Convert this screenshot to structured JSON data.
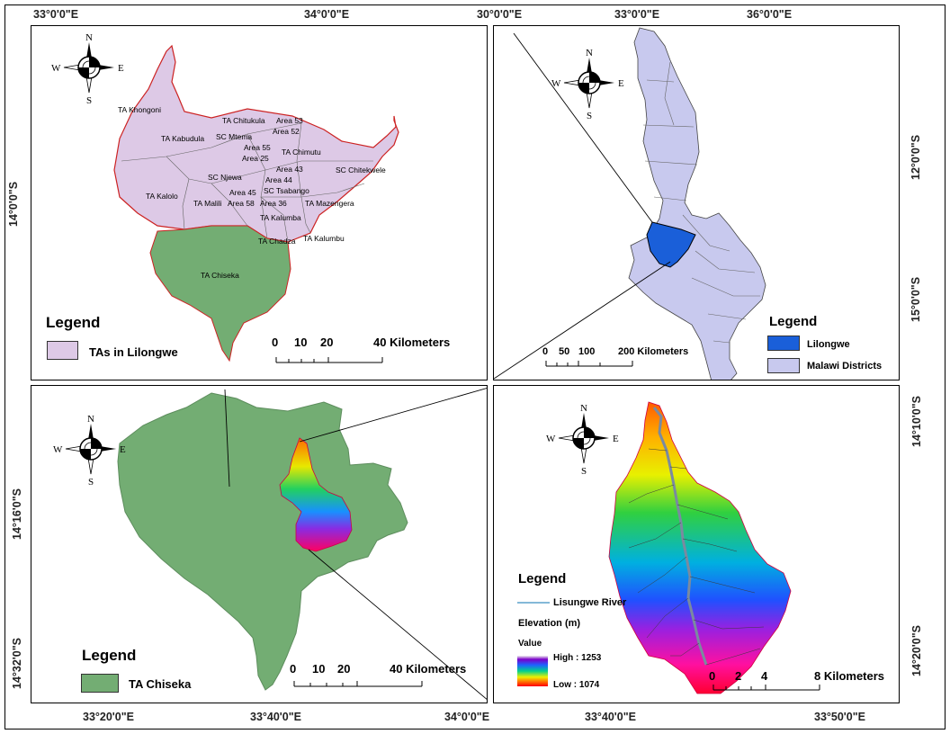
{
  "graticules": {
    "p1_top": [
      "33°0'0\"E",
      "34°0'0\"E"
    ],
    "p1_left": [
      "14°0'0\"S"
    ],
    "p2_top": [
      "30°0'0\"E",
      "33°0'0\"E",
      "36°0'0\"E"
    ],
    "p2_right": [
      "12°0'0\"S",
      "15°0'0\"S"
    ],
    "p3_left": [
      "14°16'0\"S",
      "14°32'0\"S"
    ],
    "p3_bottom": [
      "33°20'0\"E",
      "33°40'0\"E",
      "34°0'0\"E"
    ],
    "p4_right": [
      "14°10'0\"S",
      "14°20'0\"S"
    ],
    "p4_bottom": [
      "33°40'0\"E",
      "33°50'0\"E"
    ]
  },
  "compass": {
    "n": "N",
    "s": "S",
    "e": "E",
    "w": "W"
  },
  "panel1": {
    "legend_title": "Legend",
    "legend_item": "TAs in Lilongwe",
    "scale_ticks": [
      "0",
      "10",
      "20",
      "40 Kilometers"
    ],
    "labels": [
      "TA Khongoni",
      "TA Chitukula",
      "Area 53",
      "Area 52",
      "TA Kabudula",
      "SC Mtema",
      "Area 55",
      "TA Chimutu",
      "Area 25",
      "Area 43",
      "SC Chitekwele",
      "SC Njewa",
      "Area 44",
      "Area 45",
      "SC Tsabango",
      "TA Kalolo",
      "TA Malili",
      "Area 58",
      "Area 36",
      "TA Mazengera",
      "TA Kalumba",
      "TA Chadza",
      "TA Kalumbu",
      "TA Chiseka"
    ],
    "colors": {
      "ta_fill": "#ddc9e6",
      "ta_border": "#cc2222",
      "chiseka_fill": "#73ad73"
    }
  },
  "panel2": {
    "legend_title": "Legend",
    "legend_items": [
      "Lilongwe",
      "Malawi Districts"
    ],
    "scale_ticks": [
      "0",
      "50",
      "100",
      "200 Kilometers"
    ],
    "colors": {
      "lilongwe": "#1a5fd9",
      "districts": "#c8c9ee"
    }
  },
  "panel3": {
    "legend_title": "Legend",
    "legend_item": "TA Chiseka",
    "scale_ticks": [
      "0",
      "10",
      "20",
      "40 Kilometers"
    ],
    "colors": {
      "chiseka": "#73ad73"
    }
  },
  "panel4": {
    "legend_title": "Legend",
    "river_label": "Lisungwe River",
    "elevation_label": "Elevation (m)",
    "value_label": "Value",
    "high_label": "High : 1253",
    "low_label": "Low : 1074",
    "scale_ticks": [
      "0",
      "2",
      "4",
      "8 Kilometers"
    ],
    "colors": {
      "river": "#3a8fc0"
    }
  }
}
